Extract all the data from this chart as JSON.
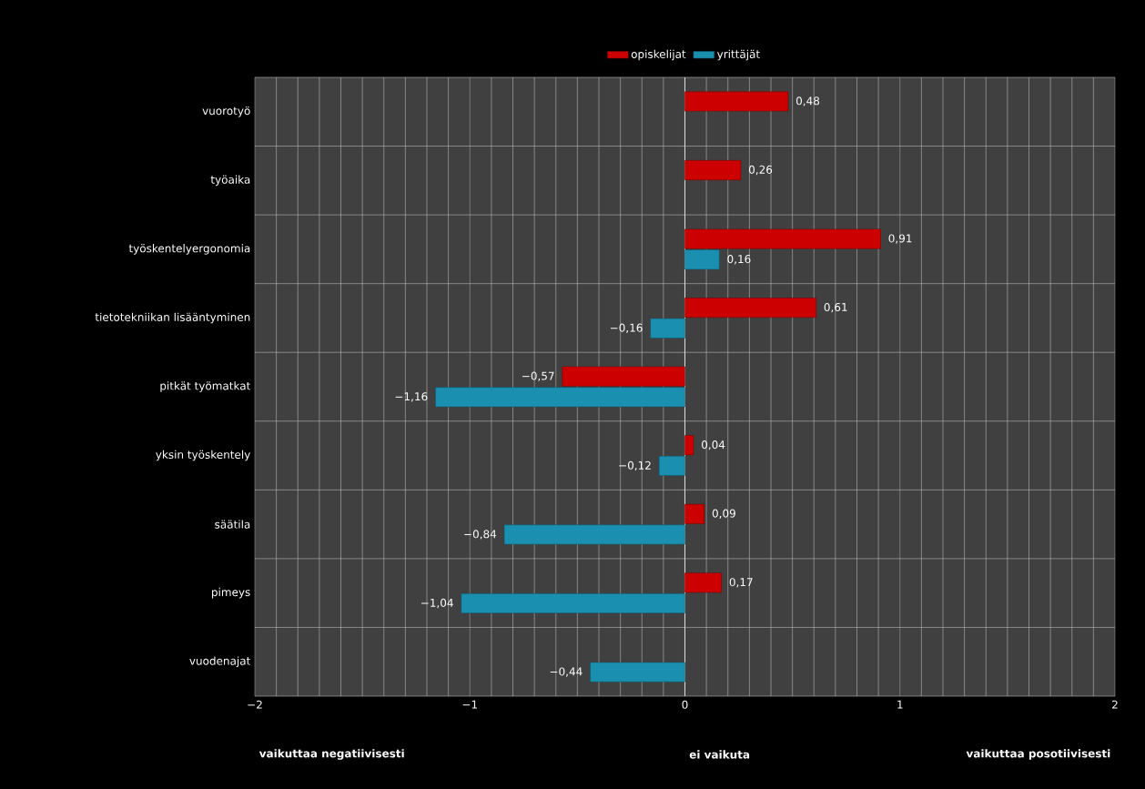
{
  "chart_data": {
    "type": "bar",
    "orientation": "horizontal",
    "categories": [
      "vuorotyö",
      "työaika",
      "työskentelyergonomia",
      "tietotekniikan lisääntyminen",
      "pitkät työmatkat",
      "yksin työskentely",
      "säätila",
      "pimeys",
      "vuodenajat"
    ],
    "series": [
      {
        "name": "opiskelijat",
        "color": "#cc0000",
        "values": [
          0.48,
          0.26,
          0.91,
          0.61,
          -0.57,
          0.04,
          0.09,
          0.17,
          null
        ],
        "value_labels": [
          "0,48",
          "0,26",
          "0,91",
          "0,61",
          "−0,57",
          "0,04",
          "0,09",
          "0,17",
          null
        ]
      },
      {
        "name": "yrittäjät",
        "color": "#1a8fb0",
        "values": [
          null,
          null,
          0.16,
          -0.16,
          -1.16,
          -0.12,
          -0.84,
          -1.04,
          -0.44
        ],
        "value_labels": [
          null,
          null,
          "0,16",
          "−0,16",
          "−1,16",
          "−0,12",
          "−0,84",
          "−1,04",
          "−0,44"
        ]
      }
    ],
    "xlim": [
      -2,
      2
    ],
    "xticks": [
      {
        "value": -2,
        "label": "−2"
      },
      {
        "value": -1,
        "label": "−1"
      },
      0,
      1,
      2
    ],
    "grid": true,
    "legend": "top",
    "annotations": [
      "vaikuttaa negatiivisesti",
      "ei vaikuta",
      "vaikuttaa posotiivisesti"
    ]
  }
}
